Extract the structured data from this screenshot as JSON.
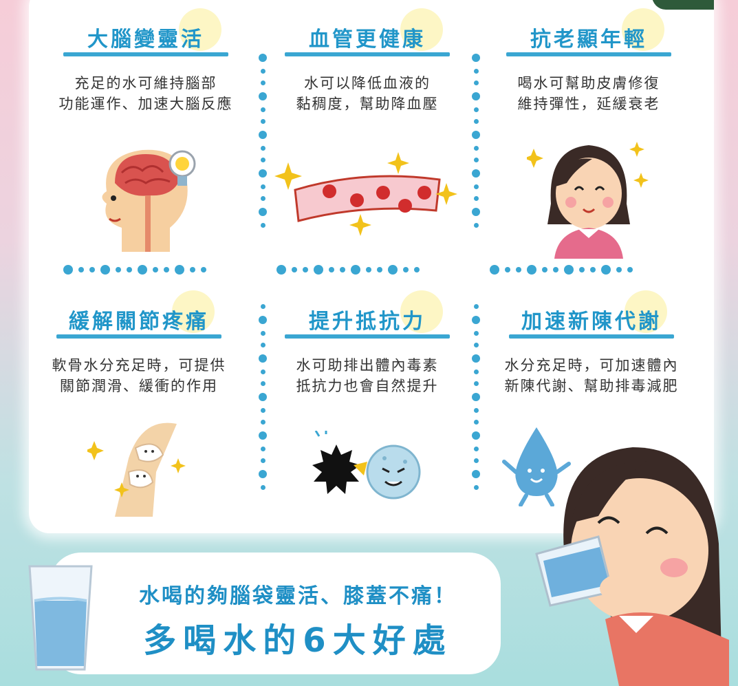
{
  "benefits": [
    {
      "title": "大腦變靈活",
      "line1": "充足的水可維持腦部",
      "line2": "功能運作、加速大腦反應",
      "icon": "brain-icon"
    },
    {
      "title": "血管更健康",
      "line1": "水可以降低血液的",
      "line2": "黏稠度，幫助降血壓",
      "icon": "blood-vessel-icon"
    },
    {
      "title": "抗老顯年輕",
      "line1": "喝水可幫助皮膚修復",
      "line2": "維持彈性，延緩衰老",
      "icon": "young-woman-icon"
    },
    {
      "title": "緩解關節疼痛",
      "line1": "軟骨水分充足時，可提供",
      "line2": "關節潤滑、緩衝的作用",
      "icon": "knee-joint-icon"
    },
    {
      "title": "提升抵抗力",
      "line1": "水可助排出體內毒素",
      "line2": "抵抗力也會自然提升",
      "icon": "immune-cell-icon"
    },
    {
      "title": "加速新陳代謝",
      "line1": "水分充足時，可加速體內",
      "line2": "新陳代謝、幫助排毒減肥",
      "icon": "water-drop-icon"
    }
  ],
  "banner": {
    "subtitle": "水喝的夠腦袋靈活、膝蓋不痛！",
    "title": "多喝水的6大好處"
  },
  "colors": {
    "accent": "#2196c9",
    "title_highlight": "#fdf6c5",
    "corner": "#2e5a3a"
  }
}
